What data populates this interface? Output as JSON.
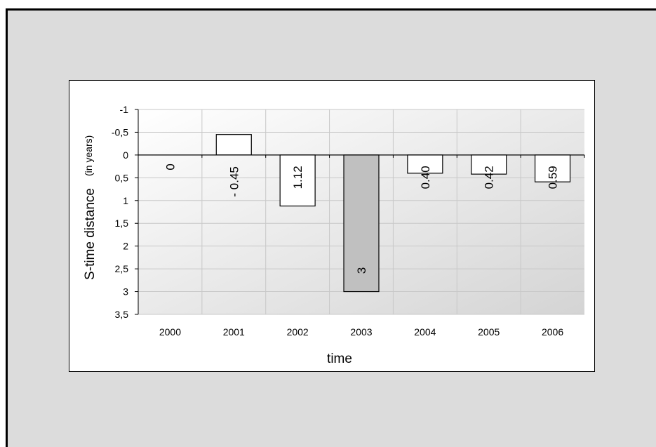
{
  "chart_data": {
    "type": "bar",
    "title": "",
    "xlabel": "time",
    "ylabel": "S-time distance",
    "ylabel_unit": "(in years)",
    "categories": [
      "2000",
      "2001",
      "2002",
      "2003",
      "2004",
      "2005",
      "2006"
    ],
    "values": [
      0,
      -0.45,
      1.12,
      3,
      0.4,
      0.42,
      0.59
    ],
    "data_labels": [
      "0",
      "- 0.45",
      "1.12",
      "3",
      "0.40",
      "0.42",
      "0.59"
    ],
    "highlight_index": 3,
    "y_axis_reversed": true,
    "ylim": [
      -1,
      3.5
    ],
    "yticks": [
      -1,
      -0.5,
      0,
      0.5,
      1,
      1.5,
      2,
      2.5,
      3,
      3.5
    ],
    "ytick_labels": [
      "-1",
      "-0,5",
      "0",
      "0,5",
      "1",
      "1,5",
      "2",
      "2,5",
      "3",
      "3,5"
    ],
    "grid": true,
    "colors": {
      "bar_fill": "#ffffff",
      "highlight_fill": "#c0c0c0",
      "bar_stroke": "#000000",
      "plot_bg_light": "#ffffff",
      "plot_bg_dark": "#d4d4d4",
      "grid": "#c8c8c8",
      "frame_bg": "#dcdcdc"
    }
  }
}
